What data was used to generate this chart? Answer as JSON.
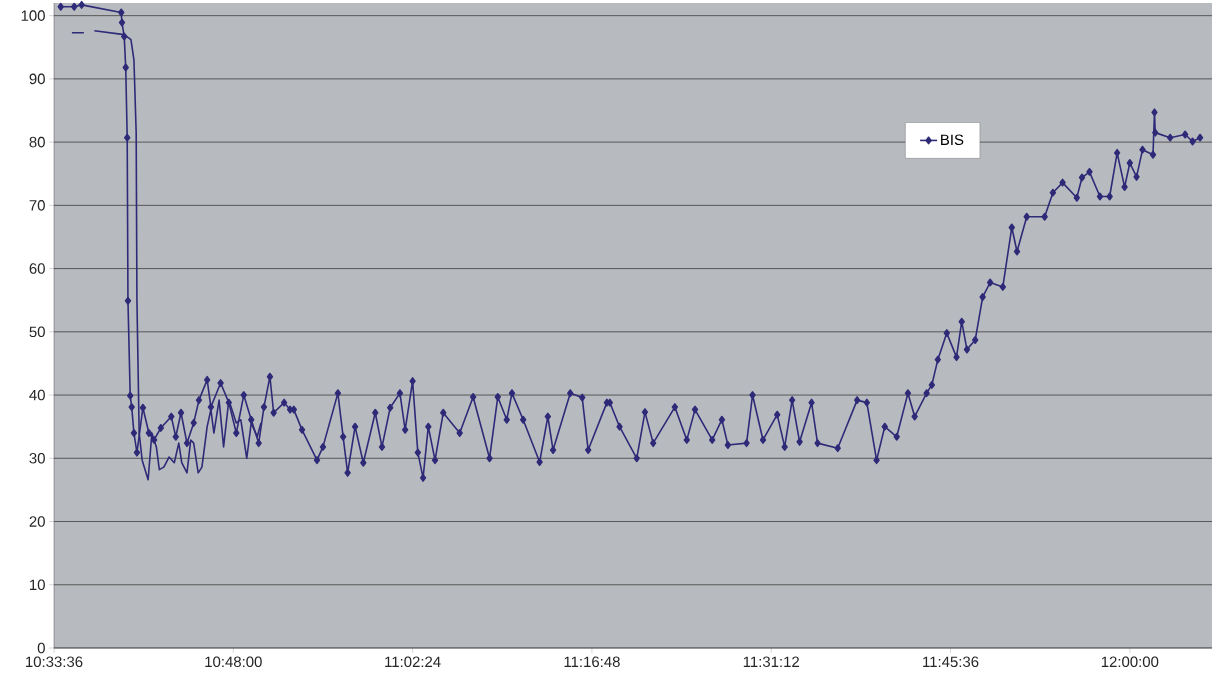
{
  "chart_data": {
    "type": "line",
    "xlim": [
      10.56,
      12.11
    ],
    "ylim": [
      0,
      102
    ],
    "xticks": [
      {
        "value": 10.56,
        "label": "10:33:36"
      },
      {
        "value": 10.8,
        "label": "10:48:00"
      },
      {
        "value": 11.04,
        "label": "11:02:24"
      },
      {
        "value": 11.28,
        "label": "11:16:48"
      },
      {
        "value": 11.52,
        "label": "11:31:12"
      },
      {
        "value": 11.76,
        "label": "11:45:36"
      },
      {
        "value": 12.0,
        "label": "12:00:00"
      }
    ],
    "yticks": [
      0,
      10,
      20,
      30,
      40,
      50,
      60,
      70,
      80,
      90,
      100
    ],
    "grid": "y",
    "legend": "top right",
    "series": [
      {
        "name": "BIS",
        "color": "#2e2a78",
        "marker": "diamond",
        "x": [
          10.569,
          10.587,
          10.597,
          10.65,
          10.651,
          10.654,
          10.656,
          10.658,
          10.659,
          10.662,
          10.664,
          10.667,
          10.671,
          10.679,
          10.687,
          10.694,
          10.703,
          10.717,
          10.723,
          10.73,
          10.738,
          10.747,
          10.754,
          10.765,
          10.77,
          10.783,
          10.794,
          10.804,
          10.814,
          10.824,
          10.834,
          10.841,
          10.849,
          10.854,
          10.868,
          10.876,
          10.881,
          10.892,
          10.912,
          10.92,
          10.94,
          10.947,
          10.953,
          10.963,
          10.974,
          10.99,
          10.999,
          11.01,
          11.023,
          11.03,
          11.04,
          11.047,
          11.054,
          11.061,
          11.07,
          11.081,
          11.103,
          11.121,
          11.143,
          11.154,
          11.166,
          11.173,
          11.188,
          11.21,
          11.221,
          11.228,
          11.251,
          11.267,
          11.275,
          11.3,
          11.304,
          11.317,
          11.34,
          11.351,
          11.362,
          11.391,
          11.407,
          11.418,
          11.441,
          11.454,
          11.462,
          11.487,
          11.495,
          11.509,
          11.528,
          11.538,
          11.548,
          11.558,
          11.574,
          11.582,
          11.609,
          11.635,
          11.648,
          11.661,
          11.672,
          11.688,
          11.703,
          11.712,
          11.728,
          11.735,
          11.743,
          11.755,
          11.768,
          11.775,
          11.782,
          11.793,
          11.803,
          11.813,
          11.83,
          11.842,
          11.849,
          11.862,
          11.886,
          11.897,
          11.91,
          11.929,
          11.936,
          11.946,
          11.96,
          11.973,
          11.983,
          11.993,
          12.0,
          12.009,
          12.017,
          12.031,
          12.033,
          12.034,
          12.054,
          12.074,
          12.084,
          12.094
        ],
        "values": [
          101.4,
          101.4,
          101.7,
          100.5,
          98.9,
          96.7,
          91.8,
          80.7,
          54.9,
          39.9,
          38.1,
          34,
          30.9,
          38,
          34,
          32.9,
          34.8,
          36.6,
          33.4,
          37.2,
          32.4,
          35.6,
          39.2,
          42.4,
          38.1,
          41.9,
          38.8,
          34,
          40,
          36.1,
          32.4,
          38.1,
          42.9,
          37.2,
          38.8,
          37.7,
          37.7,
          34.5,
          29.7,
          31.8,
          40.3,
          33.4,
          27.7,
          35,
          29.3,
          37.2,
          31.8,
          38,
          40.3,
          34.5,
          42.2,
          30.9,
          26.9,
          35,
          29.7,
          37.2,
          34,
          39.7,
          30,
          39.7,
          36.1,
          40.3,
          36.1,
          29.4,
          36.6,
          31.3,
          40.3,
          39.6,
          31.3,
          38.8,
          38.8,
          35,
          30,
          37.3,
          32.4,
          38.1,
          32.9,
          37.7,
          32.9,
          36.1,
          32.1,
          32.4,
          40,
          32.9,
          36.9,
          31.8,
          39.2,
          32.6,
          38.8,
          32.4,
          31.6,
          39.2,
          38.8,
          29.7,
          35,
          33.4,
          40.3,
          36.6,
          40.3,
          41.6,
          45.6,
          49.8,
          46,
          51.6,
          47.2,
          48.7,
          55.5,
          57.8,
          57.1,
          66.5,
          62.7,
          68.2,
          68.2,
          72,
          73.6,
          71.2,
          74.4,
          75.3,
          71.4,
          71.4,
          78.3,
          72.9,
          76.7,
          74.5,
          78.8,
          78,
          84.7,
          81.5,
          80.7,
          81.2,
          80.1,
          80.7
        ]
      },
      {
        "color": "#2e2a78",
        "marker": "none",
        "x": [
          10.584,
          10.6,
          10.607,
          10.614,
          10.654,
          10.663,
          10.667,
          10.67,
          10.671,
          10.674,
          10.678,
          10.686,
          10.691,
          10.697,
          10.701,
          10.707,
          10.714,
          10.721,
          10.727,
          10.731,
          10.738,
          10.743,
          10.747,
          10.753,
          10.758,
          10.765,
          10.77,
          10.774,
          10.781,
          10.787,
          10.794,
          10.804,
          10.81,
          10.818,
          10.824,
          10.832,
          10.837
        ],
        "values": [
          97.3,
          97.3,
          null,
          97.6,
          97,
          96.2,
          93,
          81.5,
          55,
          34,
          29.7,
          26.6,
          34,
          31.8,
          28.2,
          28.6,
          30.2,
          29.3,
          32.4,
          29.3,
          27.7,
          32.9,
          32.4,
          27.7,
          28.6,
          35,
          37.7,
          34,
          39.2,
          31.8,
          39.2,
          35.6,
          36.1,
          30,
          35.6,
          33.4,
          35.6
        ]
      }
    ]
  }
}
